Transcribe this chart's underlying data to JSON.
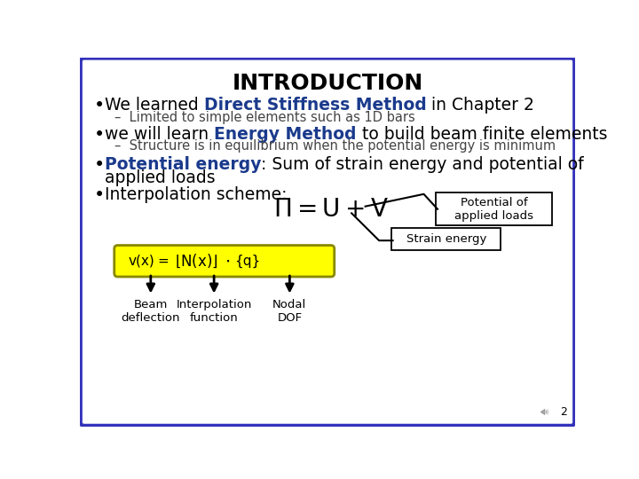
{
  "title": "INTRODUCTION",
  "background_color": "#ffffff",
  "border_color": "#3333bb",
  "bullet1_parts": [
    [
      "We learned ",
      false
    ],
    [
      "Direct Stiffness Method",
      true
    ],
    [
      " in Chapter 2",
      false
    ]
  ],
  "sub1": "–  Limited to simple elements such as 1D bars",
  "bullet2_parts": [
    [
      "we will learn ",
      false
    ],
    [
      "Energy Method",
      true
    ],
    [
      " to build beam finite elements",
      false
    ]
  ],
  "sub2": "–  Structure is in equilibrium when the potential energy is minimum",
  "bullet3_parts": [
    [
      "Potential energy",
      true
    ],
    [
      ": Sum of strain energy and potential of",
      false
    ]
  ],
  "bullet3_line2": "applied loads",
  "bullet4": "Interpolation scheme:",
  "label_potential": "Potential of\napplied loads",
  "label_strain": "Strain energy",
  "arrow_labels": [
    "Beam\ndeflection",
    "Interpolation\nfunction",
    "Nodal\nDOF"
  ],
  "page_number": "2",
  "bold_color": "#1a3a8c",
  "normal_color": "#000000",
  "sub_color": "#444444",
  "yellow": "#ffff00"
}
